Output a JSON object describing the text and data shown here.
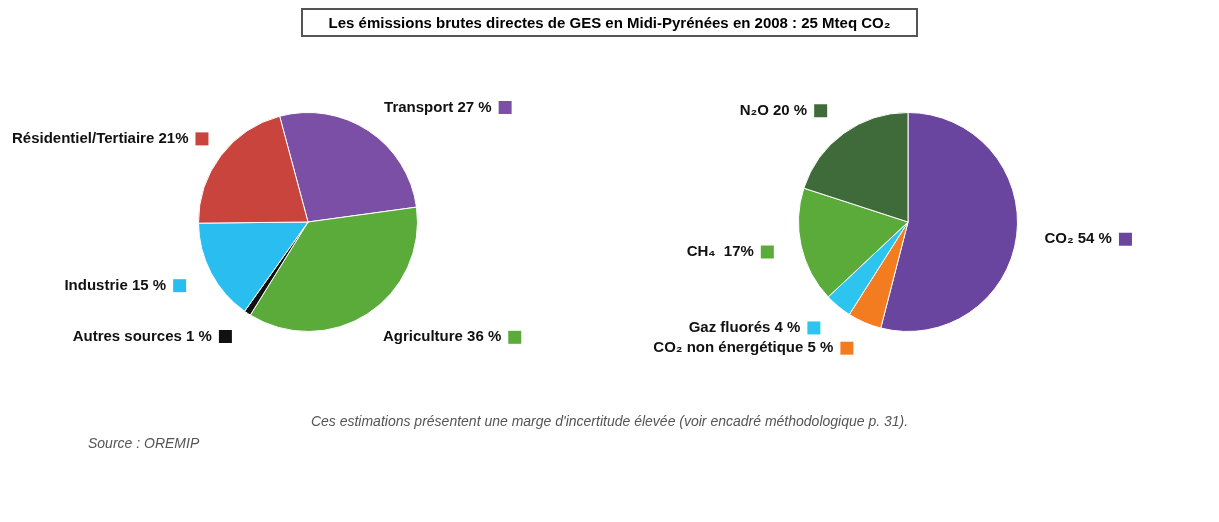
{
  "chart_data": [
    {
      "type": "pie",
      "title": "Les émissions brutes directes de GES en Midi-Pyrénées en 2008 : 25 Mteq CO₂",
      "categories": [
        "Transport 27 %",
        "Agriculture 36 %",
        "Autres sources 1 %",
        "Industrie 15 %",
        "Résidentiel/Tertiaire 21%"
      ],
      "values": [
        27,
        36,
        1,
        15,
        21
      ],
      "legend": "bottom left",
      "colors": [
        "#7b4fa6",
        "#5aab3a",
        "#111111",
        "#29bdf0",
        "#c8443d"
      ]
    },
    {
      "type": "pie",
      "categories": [
        "CO₂ 54 %",
        "CO₂ non énergétique 5 %",
        "Gaz fluorés 4 %",
        "CH₄  17%",
        "N₂O 20 %"
      ],
      "values": [
        54,
        5,
        4,
        17,
        20
      ],
      "legend": "bottom left",
      "colors": [
        "#6a45a0",
        "#f47c20",
        "#2ec4f0",
        "#5aab3a",
        "#3f6b3a"
      ],
      "annotations": [
        "Ces estimations présentent une marge d'incertitude élevée (voir encadré méthodologique p. 31).",
        "Source : OREMIP"
      ]
    }
  ]
}
